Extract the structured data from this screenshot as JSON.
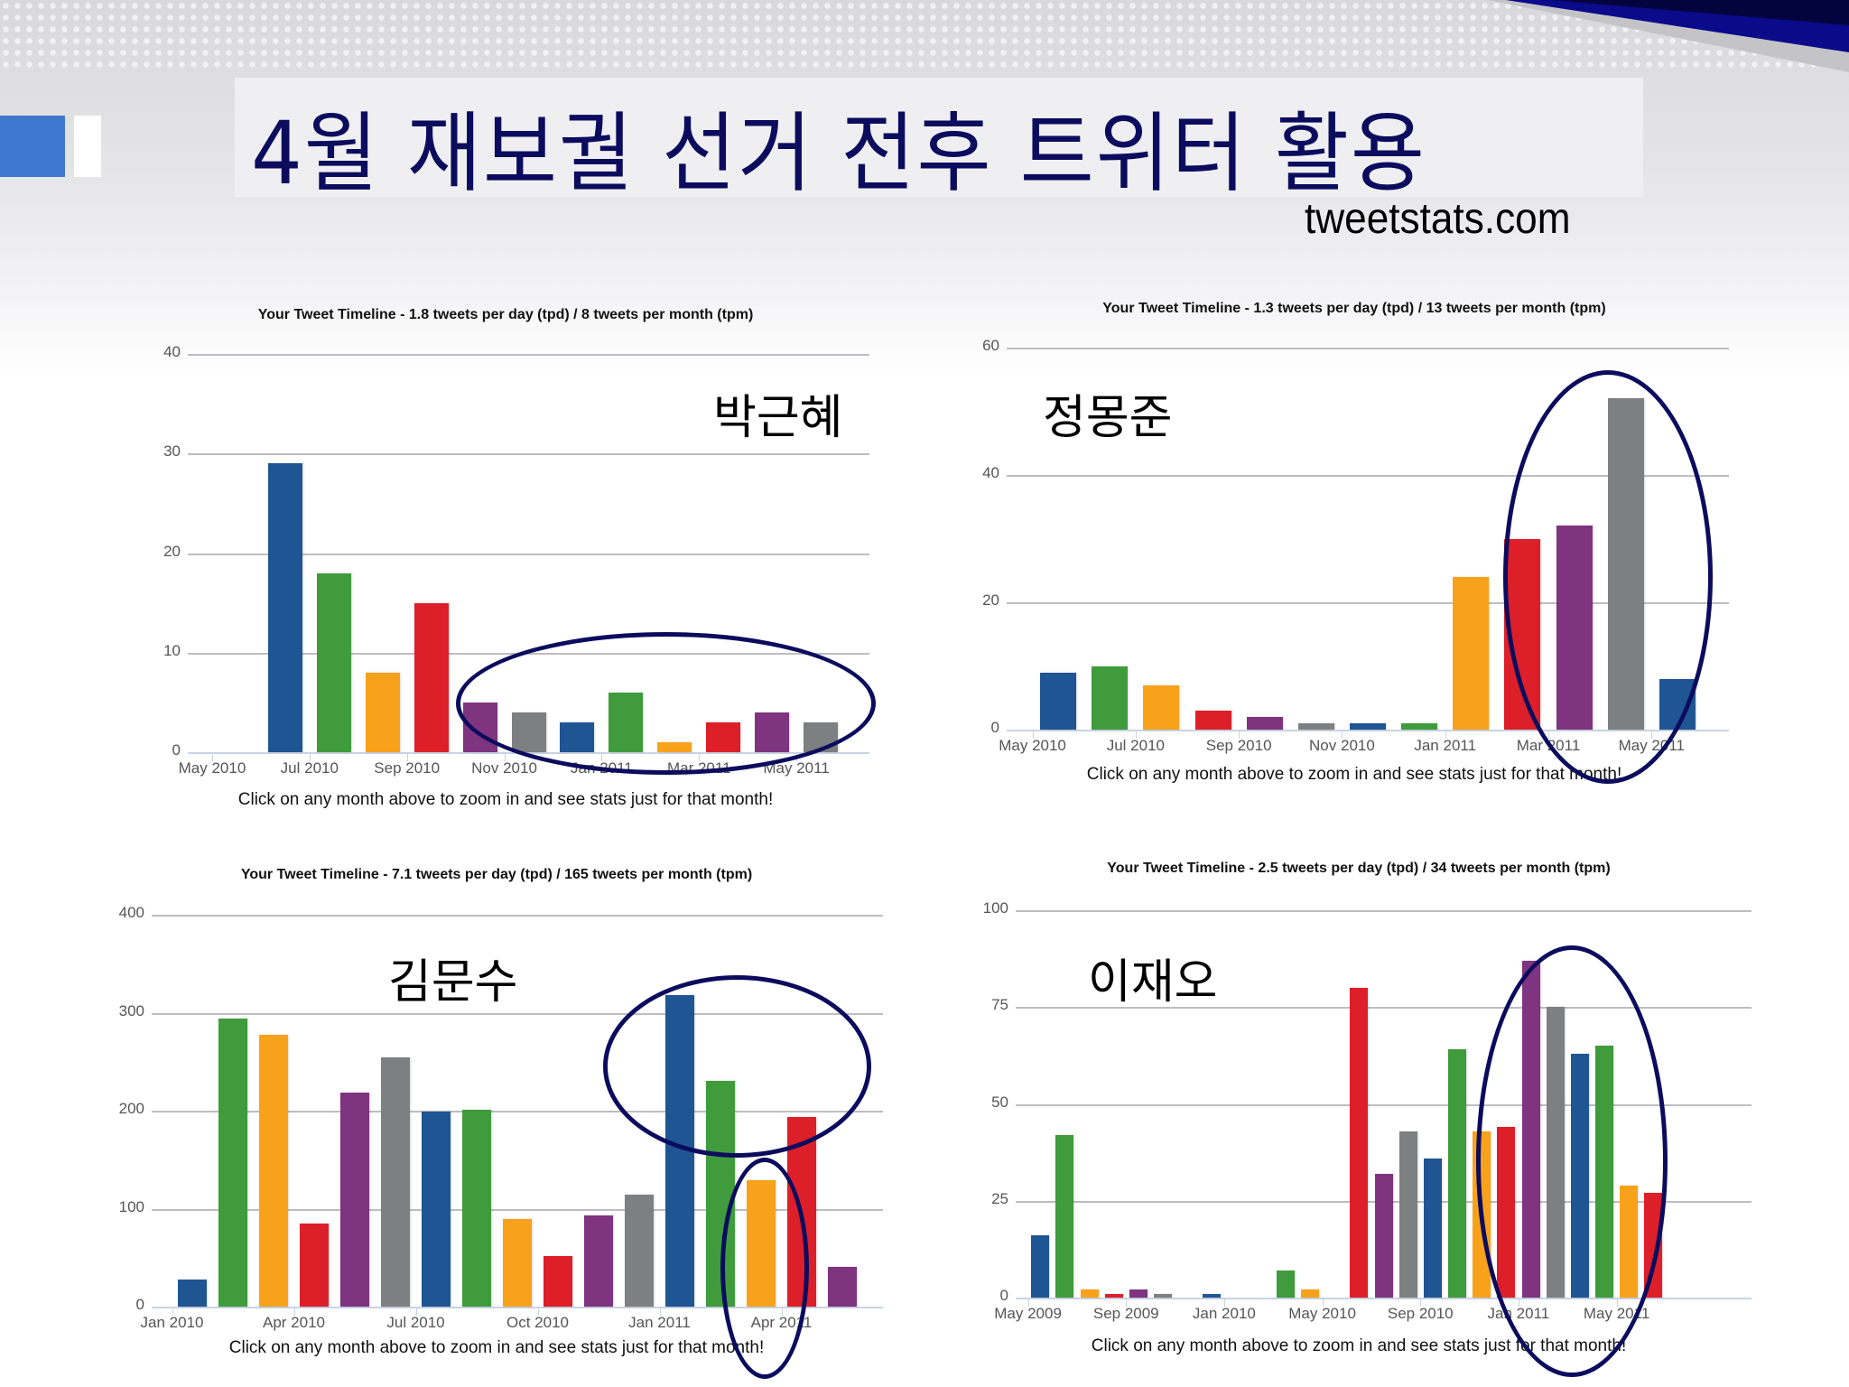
{
  "slide": {
    "title": "4월 재보궐 선거 전후 트위터 활용",
    "source": "tweetstats.com"
  },
  "colors": {
    "blue": "#1f5593",
    "green": "#3f9b3c",
    "orange": "#f8a21c",
    "red": "#dc1f29",
    "purple": "#7e347e",
    "gray": "#7d7f80",
    "ellipse": "#0c0c5e",
    "title": "#0c0c5e"
  },
  "chart_data": [
    {
      "type": "bar",
      "person": "박근혜",
      "title": "Your Tweet Timeline - 1.8 tweets per day (tpd) / 8 tweets per month (tpm)",
      "footnote": "Click on any month above to zoom in and see stats just for that month!",
      "xlabel": "",
      "ylabel": "",
      "ylim": [
        0,
        40
      ],
      "yticks": [
        0,
        10,
        20,
        30,
        40
      ],
      "xticks": [
        "May 2010",
        "Jul 2010",
        "Sep 2010",
        "Nov 2010",
        "Jan 2011",
        "Mar 2011",
        "May 2011"
      ],
      "categories": [
        "Jun 2010",
        "Jul 2010",
        "Aug 2010",
        "Sep 2010",
        "Oct 2010",
        "Nov 2010",
        "Dec 2010",
        "Jan 2011",
        "Feb 2011",
        "Mar 2011",
        "Apr 2011",
        "May 2011"
      ],
      "values": [
        29,
        18,
        8,
        15,
        5,
        4,
        3,
        6,
        1,
        3,
        4,
        3
      ],
      "bar_colors": [
        "blue",
        "green",
        "orange",
        "red",
        "purple",
        "gray",
        "blue",
        "green",
        "orange",
        "red",
        "purple",
        "gray"
      ],
      "grid": true,
      "highlight": "ellipse around Oct 2010 – May 2011"
    },
    {
      "type": "bar",
      "person": "정몽준",
      "title": "Your Tweet Timeline - 1.3 tweets per day (tpd) / 13 tweets per month (tpm)",
      "footnote": "Click on any month above to zoom in and see stats just for that month!",
      "xlabel": "",
      "ylabel": "",
      "ylim": [
        0,
        60
      ],
      "yticks": [
        0,
        20,
        40,
        60
      ],
      "xticks": [
        "May 2010",
        "Jul 2010",
        "Sep 2010",
        "Nov 2010",
        "Jan 2011",
        "Mar 2011",
        "May 2011"
      ],
      "categories": [
        "May 2010",
        "Jun 2010",
        "Jul 2010",
        "Aug 2010",
        "Sep 2010",
        "Oct 2010",
        "Nov 2010",
        "Dec 2010",
        "Jan 2011",
        "Feb 2011",
        "Mar 2011",
        "Apr 2011",
        "May 2011"
      ],
      "values": [
        9,
        10,
        7,
        3,
        2,
        1,
        1,
        1,
        24,
        30,
        32,
        52,
        8
      ],
      "bar_colors": [
        "blue",
        "green",
        "orange",
        "red",
        "purple",
        "gray",
        "blue",
        "green",
        "orange",
        "red",
        "purple",
        "gray",
        "blue"
      ],
      "grid": true,
      "highlight": "ellipse around Feb 2011 – May 2011"
    },
    {
      "type": "bar",
      "person": "김문수",
      "title": "Your Tweet Timeline - 7.1 tweets per day (tpd) / 165 tweets per month (tpm)",
      "footnote": "Click on any month above to zoom in and see stats just for that month!",
      "xlabel": "",
      "ylabel": "",
      "ylim": [
        0,
        400
      ],
      "yticks": [
        0,
        100,
        200,
        300,
        400
      ],
      "xticks": [
        "Jan 2010",
        "Apr 2010",
        "Jul 2010",
        "Oct 2010",
        "Jan 2011",
        "Apr 2011"
      ],
      "categories": [
        "Jan 2010",
        "Feb 2010",
        "Mar 2010",
        "Apr 2010",
        "May 2010",
        "Jun 2010",
        "Jul 2010",
        "Aug 2010",
        "Sep 2010",
        "Oct 2010",
        "Nov 2010",
        "Dec 2010",
        "Jan 2011",
        "Feb 2011",
        "Mar 2011",
        "Apr 2011",
        "May 2011"
      ],
      "values": [
        28,
        294,
        277,
        85,
        218,
        254,
        199,
        201,
        89,
        52,
        93,
        114,
        318,
        230,
        129,
        194,
        41
      ],
      "bar_colors": [
        "blue",
        "green",
        "orange",
        "red",
        "purple",
        "gray",
        "blue",
        "green",
        "orange",
        "red",
        "purple",
        "gray",
        "blue",
        "green",
        "orange",
        "red",
        "purple"
      ],
      "grid": true,
      "highlight": "ellipses around Jan–Feb 2011 and Mar 2011"
    },
    {
      "type": "bar",
      "person": "이재오",
      "title": "Your Tweet Timeline - 2.5 tweets per day (tpd) / 34 tweets per month (tpm)",
      "footnote": "Click on any month above to zoom in and see stats just for that month!",
      "xlabel": "",
      "ylabel": "",
      "ylim": [
        0,
        100
      ],
      "yticks": [
        0,
        25,
        50,
        75,
        100
      ],
      "xticks": [
        "May 2009",
        "Sep 2009",
        "Jan 2010",
        "May 2010",
        "Sep 2010",
        "Jan 2011",
        "May 2011"
      ],
      "categories": [
        "May 2009",
        "Jun 2009",
        "Jul 2009",
        "Aug 2009",
        "Sep 2009",
        "Oct 2009",
        "Nov 2009",
        "Dec 2009",
        "Jan 2010",
        "Feb 2010",
        "Mar 2010",
        "Apr 2010",
        "May 2010",
        "Jun 2010",
        "Jul 2010",
        "Aug 2010",
        "Sep 2010",
        "Oct 2010",
        "Nov 2010",
        "Dec 2010",
        "Jan 2011",
        "Feb 2011",
        "Mar 2011",
        "Apr 2011",
        "May 2011",
        "Jun 2011"
      ],
      "values": [
        16,
        42,
        2,
        1,
        2,
        1,
        0,
        1,
        0,
        0,
        7,
        2,
        0,
        80,
        32,
        43,
        36,
        64,
        43,
        44,
        87,
        75,
        63,
        65,
        29,
        27
      ],
      "bar_colors": [
        "blue",
        "green",
        "orange",
        "red",
        "purple",
        "gray",
        "blue",
        "blue",
        "green",
        "orange",
        "green",
        "orange",
        "red",
        "red",
        "purple",
        "gray",
        "blue",
        "green",
        "orange",
        "red",
        "purple",
        "gray",
        "blue",
        "green",
        "orange",
        "red"
      ],
      "grid": true,
      "highlight": "ellipse around Nov 2010 – May 2011"
    }
  ]
}
